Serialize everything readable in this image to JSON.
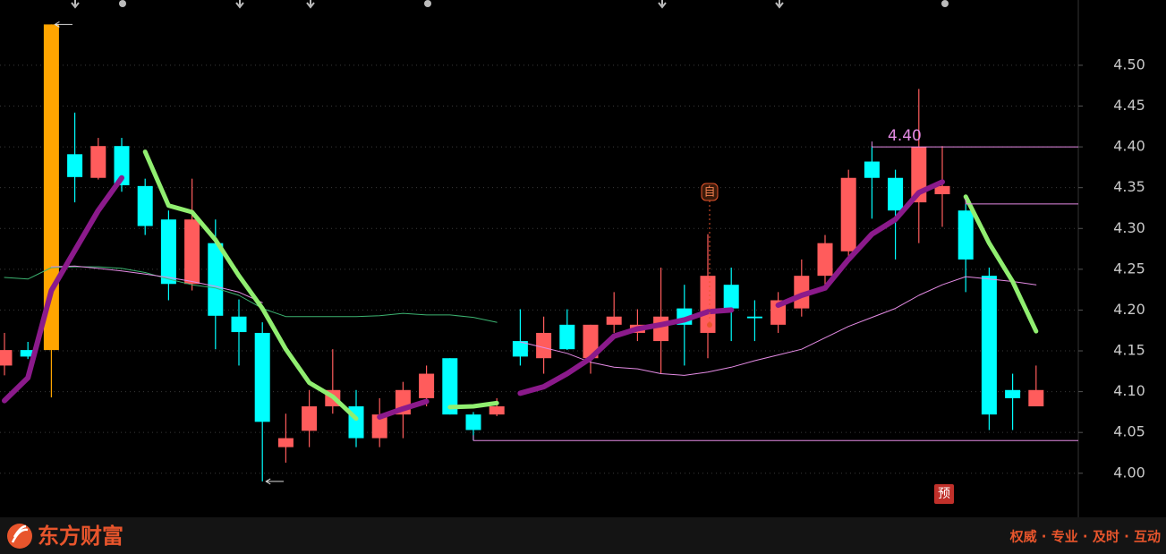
{
  "chart_data": {
    "type": "candlestick",
    "ylim": [
      3.946,
      4.58
    ],
    "yticks": [
      {
        "value": 4.0,
        "label": "4.00"
      },
      4.05,
      {
        "value": 4.1,
        "label": "4.10"
      },
      4.15,
      {
        "value": 4.2,
        "label": "4.20"
      },
      4.25,
      {
        "value": 4.3,
        "label": "4.30"
      },
      4.35,
      {
        "value": 4.4,
        "label": "4.40"
      },
      4.45,
      {
        "value": 4.5,
        "label": "4.50"
      }
    ],
    "grid": true,
    "up_color": "#ff5c5c",
    "down_color": "#00ffff",
    "highlight": {
      "index": 2,
      "color": "#ffa500"
    },
    "open": [
      4.132,
      4.151,
      4.151,
      4.391,
      4.362,
      4.401,
      4.352,
      4.311,
      4.232,
      4.282,
      4.192,
      4.172,
      4.032,
      4.052,
      4.082,
      4.082,
      4.043,
      4.072,
      4.092,
      4.141,
      4.072,
      4.072,
      4.162,
      4.141,
      4.182,
      4.141,
      4.182,
      4.172,
      4.162,
      4.202,
      4.172,
      4.231,
      4.192,
      4.182,
      4.202,
      4.242,
      4.272,
      4.382,
      4.362,
      4.332,
      4.342,
      4.322,
      4.242,
      4.102,
      4.082
    ],
    "high": [
      4.172,
      4.161,
      4.55,
      4.442,
      4.411,
      4.411,
      4.361,
      4.322,
      4.361,
      4.311,
      4.213,
      4.185,
      4.073,
      4.102,
      4.152,
      4.102,
      4.092,
      4.112,
      4.132,
      4.141,
      4.075,
      4.092,
      4.201,
      4.192,
      4.201,
      4.182,
      4.222,
      4.201,
      4.252,
      4.231,
      4.293,
      4.252,
      4.212,
      4.222,
      4.262,
      4.292,
      4.372,
      4.401,
      4.372,
      4.471,
      4.401,
      4.33,
      4.252,
      4.122,
      4.132
    ],
    "low": [
      4.12,
      4.14,
      4.093,
      4.332,
      4.36,
      4.345,
      4.292,
      4.212,
      4.224,
      4.152,
      4.132,
      3.99,
      4.013,
      4.032,
      4.073,
      4.032,
      4.032,
      4.043,
      4.082,
      4.072,
      4.04,
      4.07,
      4.132,
      4.122,
      4.151,
      4.122,
      4.172,
      4.162,
      4.122,
      4.132,
      4.141,
      4.162,
      4.162,
      4.172,
      4.192,
      4.231,
      4.262,
      4.312,
      4.262,
      4.282,
      4.302,
      4.222,
      4.053,
      4.053,
      4.082
    ],
    "close": [
      4.151,
      4.143,
      4.55,
      4.363,
      4.401,
      4.353,
      4.303,
      4.232,
      4.311,
      4.193,
      4.173,
      4.063,
      4.043,
      4.082,
      4.102,
      4.043,
      4.072,
      4.102,
      4.122,
      4.072,
      4.053,
      4.082,
      4.143,
      4.172,
      4.152,
      4.182,
      4.192,
      4.182,
      4.192,
      4.182,
      4.242,
      4.202,
      4.19,
      4.212,
      4.242,
      4.282,
      4.362,
      4.362,
      4.322,
      4.4,
      4.352,
      4.262,
      4.072,
      4.092,
      4.102
    ],
    "series": [
      {
        "color": "#3cb371",
        "width": 1,
        "values": [
          4.24,
          4.238,
          4.252,
          4.253,
          4.253,
          4.251,
          4.246,
          4.238,
          4.231,
          4.227,
          4.218,
          4.202,
          4.192,
          4.192,
          4.192,
          4.192,
          4.193,
          4.196,
          4.194,
          4.194,
          4.191,
          4.185,
          null,
          null,
          null,
          null,
          null,
          null,
          null,
          null,
          null,
          null,
          null,
          null,
          null,
          null,
          null,
          null,
          null,
          null,
          null,
          null,
          null,
          null,
          null
        ]
      },
      {
        "color": "#e58be5",
        "width": 1,
        "values": [
          null,
          null,
          4.253,
          4.254,
          4.251,
          4.248,
          4.244,
          4.24,
          4.235,
          4.229,
          4.222,
          4.209,
          null,
          null,
          null,
          null,
          null,
          null,
          null,
          null,
          null,
          null,
          4.161,
          4.154,
          4.147,
          4.136,
          4.13,
          4.128,
          4.122,
          4.12,
          4.124,
          4.13,
          4.138,
          4.145,
          4.152,
          4.166,
          4.18,
          4.191,
          4.202,
          4.218,
          4.231,
          4.241,
          4.238,
          4.235,
          4.231
        ]
      },
      {
        "color": "#8b1a8b",
        "width": 6,
        "values": [
          4.089,
          4.117,
          4.224,
          4.273,
          4.322,
          4.362,
          null,
          null,
          null,
          null,
          null,
          null,
          null,
          null,
          null,
          null,
          4.069,
          4.079,
          4.088,
          null,
          null,
          null,
          4.098,
          4.106,
          4.122,
          4.141,
          4.168,
          4.177,
          4.182,
          4.188,
          4.198,
          4.2,
          null,
          4.206,
          4.218,
          4.227,
          4.262,
          4.293,
          4.311,
          4.344,
          4.357,
          null,
          null,
          null,
          null
        ]
      },
      {
        "color": "#90ee70",
        "width": 5,
        "values": [
          null,
          null,
          null,
          null,
          null,
          null,
          4.394,
          4.328,
          4.32,
          4.286,
          4.242,
          4.202,
          4.152,
          4.111,
          4.094,
          4.067,
          null,
          null,
          null,
          4.081,
          4.082,
          4.086,
          null,
          null,
          null,
          null,
          null,
          null,
          null,
          null,
          null,
          null,
          null,
          null,
          null,
          null,
          null,
          null,
          null,
          null,
          null,
          4.339,
          4.282,
          4.235,
          4.174
        ]
      }
    ],
    "annotations": [
      {
        "value": 4.55
      },
      {
        "value": 3.99
      },
      {
        "value": 4.04
      },
      {
        "value": 4.4,
        "label": "4.40"
      },
      {
        "value": 4.33
      }
    ],
    "markers": [
      "自",
      "预"
    ]
  },
  "footer": {
    "brand": "东方财富",
    "slogan": "权威 · 专业 · 及时 · 互动"
  }
}
